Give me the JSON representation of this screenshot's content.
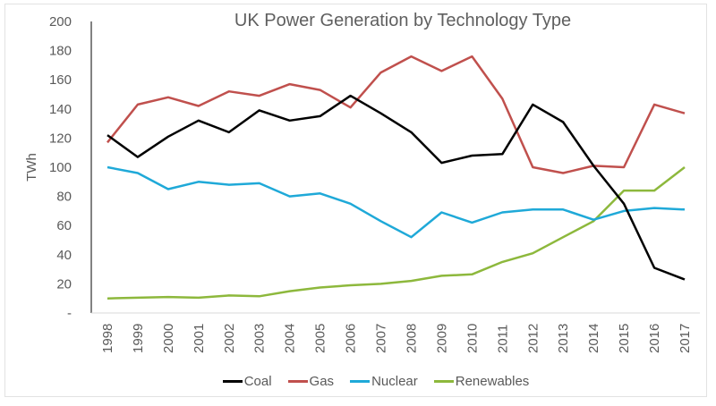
{
  "chart_data": {
    "type": "line",
    "title": "UK Power Generation by Technology Type",
    "xlabel": "",
    "ylabel": "TWh",
    "ylim": [
      0,
      200
    ],
    "yticks": [
      0,
      20,
      40,
      60,
      80,
      100,
      120,
      140,
      160,
      180,
      200
    ],
    "ytick_labels": [
      "-",
      "20",
      "40",
      "60",
      "80",
      "100",
      "120",
      "140",
      "160",
      "180",
      "200"
    ],
    "grid": false,
    "legend_position": "bottom",
    "categories": [
      "1998",
      "1999",
      "2000",
      "2001",
      "2002",
      "2003",
      "2004",
      "2005",
      "2006",
      "2007",
      "2008",
      "2009",
      "2010",
      "2011",
      "2012",
      "2013",
      "2014",
      "2015",
      "2016",
      "2017"
    ],
    "series": [
      {
        "name": "Coal",
        "color": "#000000",
        "values": [
          122,
          107,
          121,
          132,
          124,
          139,
          132,
          135,
          149,
          137,
          124,
          103,
          108,
          109,
          143,
          131,
          101,
          75,
          31,
          23
        ]
      },
      {
        "name": "Gas",
        "color": "#c0504d",
        "values": [
          117,
          143,
          148,
          142,
          152,
          149,
          157,
          153,
          141,
          165,
          176,
          166,
          176,
          147,
          100,
          96,
          101,
          100,
          143,
          137
        ]
      },
      {
        "name": "Nuclear",
        "color": "#1fa9d8",
        "values": [
          100,
          96,
          85,
          90,
          88,
          89,
          80,
          82,
          75,
          63,
          52,
          69,
          62,
          69,
          71,
          71,
          64,
          70,
          72,
          71
        ]
      },
      {
        "name": "Renewables",
        "color": "#8db83c",
        "values": [
          10,
          10.5,
          11,
          10.5,
          12,
          11.5,
          15,
          17.5,
          19,
          20,
          22,
          25.5,
          26.5,
          35,
          41,
          52,
          63,
          84,
          84,
          100
        ]
      }
    ]
  }
}
